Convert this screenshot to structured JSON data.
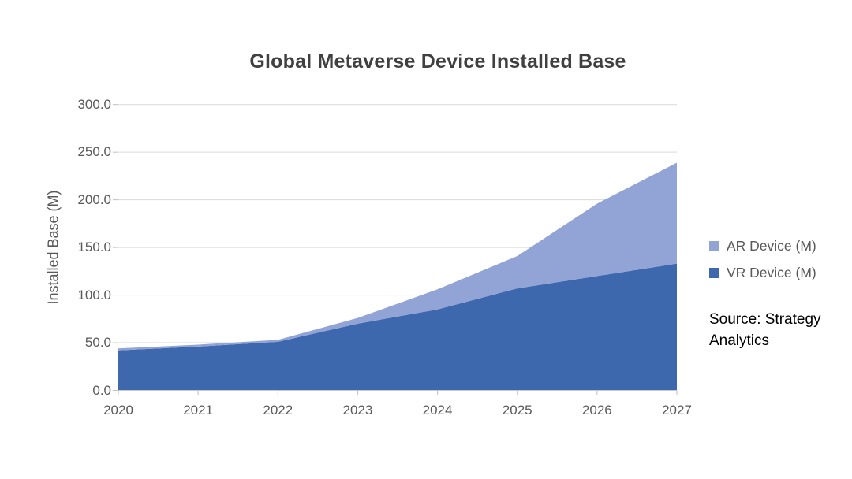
{
  "page": {
    "background": "#FFFFFF"
  },
  "chart_data": {
    "type": "area",
    "stacked": true,
    "title": "Global Metaverse Device Installed Base",
    "categories": [
      "2020",
      "2021",
      "2022",
      "2023",
      "2024",
      "2025",
      "2026",
      "2027"
    ],
    "series": [
      {
        "name": "AR Device (M)",
        "color": "#92A3D6",
        "values": [
          2,
          2,
          2,
          6,
          21,
          34,
          76,
          106
        ]
      },
      {
        "name": "VR Device (M)",
        "color": "#3E68AE",
        "values": [
          42,
          46,
          51,
          70,
          85,
          107,
          120,
          133
        ]
      }
    ],
    "stack_note": "VR Device (M) is the bottom band; AR Device (M) is stacked on top (stack order is reverse of series list)",
    "xlabel": "",
    "ylabel": "Installed Base (M)",
    "ylim": [
      0,
      300
    ],
    "ytick_step": 50,
    "ytick_values": [
      0,
      50,
      100,
      150,
      200,
      250,
      300
    ],
    "ytick_labels": [
      "0.0",
      "50.0",
      "100.0",
      "150.0",
      "200.0",
      "250.0",
      "300.0"
    ],
    "grid": "horizontal",
    "gridline_color": "#D9D9D9",
    "axis_line_color": "#C9C9C9",
    "tick_color": "#C0C0C0",
    "legend_position": "right",
    "source_note": {
      "line1": "Source: Strategy",
      "line2": "Analytics"
    }
  }
}
